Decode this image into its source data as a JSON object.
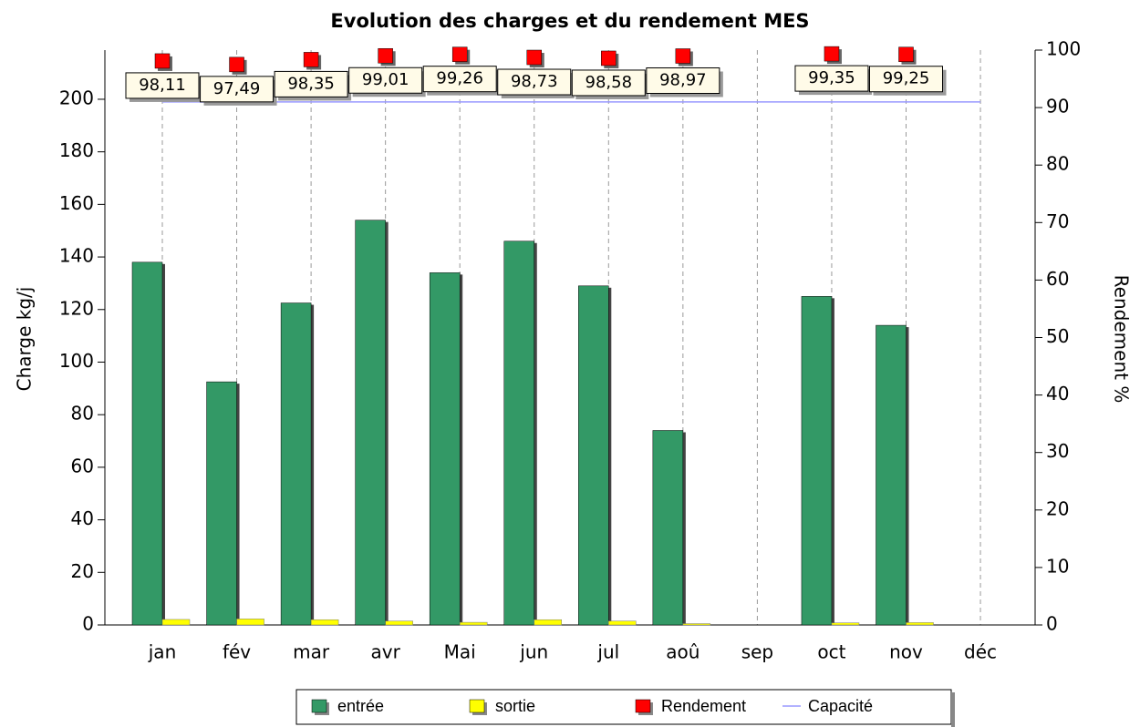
{
  "chart_data": {
    "type": "bar",
    "title": "Evolution des charges et du rendement MES",
    "y_label": "Charge kg/j",
    "y2_label": "Rendement %",
    "categories": [
      "jan",
      "fév",
      "mar",
      "avr",
      "Mai",
      "jun",
      "jul",
      "aoû",
      "sep",
      "oct",
      "nov",
      "déc"
    ],
    "series": [
      {
        "name": "entrée",
        "color": "#339966",
        "values": [
          138,
          92.5,
          122.5,
          154,
          134,
          146,
          129,
          74,
          null,
          125,
          114,
          null
        ]
      },
      {
        "name": "sortie",
        "color": "#ffff00",
        "values": [
          2.1,
          2.3,
          2,
          1.5,
          1,
          2,
          1.5,
          0.5,
          null,
          0.8,
          0.9,
          null
        ]
      },
      {
        "name": "Rendement",
        "color": "#ff0000",
        "axis": "y2",
        "values": [
          98.11,
          97.49,
          98.35,
          99.01,
          99.26,
          98.73,
          98.58,
          98.97,
          null,
          99.35,
          99.25,
          null
        ],
        "value_labels": [
          "98,11",
          "97,49",
          "98,35",
          "99,01",
          "99,26",
          "98,73",
          "98,58",
          "98,97",
          null,
          "99,35",
          "99,25",
          null
        ]
      },
      {
        "name": "Capacité",
        "color": "#9999ff",
        "values": [
          199,
          199,
          199,
          199,
          199,
          199,
          199,
          199,
          199,
          199,
          199,
          199
        ]
      }
    ],
    "ylim": [
      0,
      218.7
    ],
    "yticks": [
      0,
      20,
      40,
      60,
      80,
      100,
      120,
      140,
      160,
      180,
      200
    ],
    "y2lim": [
      0,
      100
    ],
    "y2ticks": [
      0,
      10,
      20,
      30,
      40,
      50,
      60,
      70,
      80,
      90,
      100
    ],
    "grid": true
  }
}
